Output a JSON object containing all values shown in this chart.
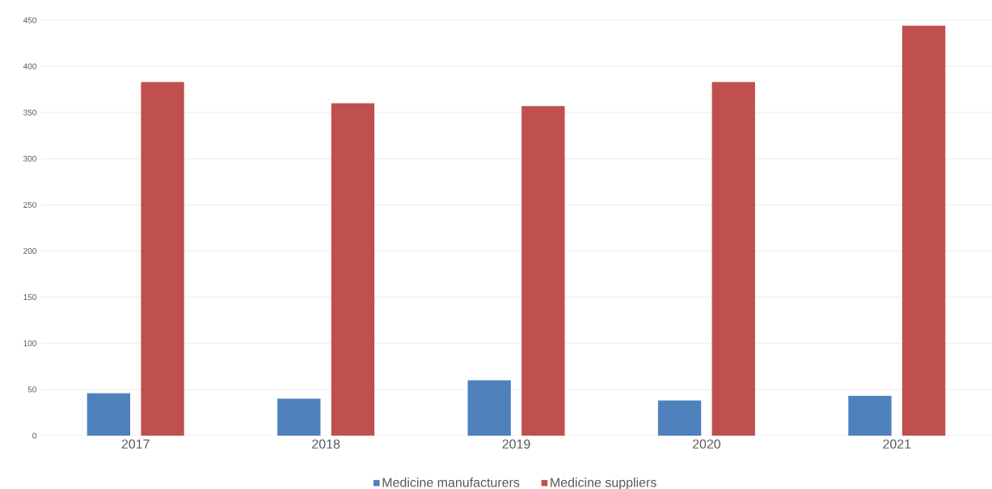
{
  "chart_data": {
    "type": "bar",
    "categories": [
      "2017",
      "2018",
      "2019",
      "2020",
      "2021"
    ],
    "series": [
      {
        "name": "Medicine manufacturers",
        "color": "#4f81bd",
        "values": [
          46,
          40,
          60,
          38,
          43
        ]
      },
      {
        "name": "Medicine suppliers",
        "color": "#c0504d",
        "values": [
          383,
          360,
          357,
          383,
          444
        ]
      }
    ],
    "ylim": [
      0,
      450
    ],
    "yticks": [
      0,
      50,
      100,
      150,
      200,
      250,
      300,
      350,
      400,
      450
    ],
    "grid": "y",
    "legend": "bottom"
  }
}
